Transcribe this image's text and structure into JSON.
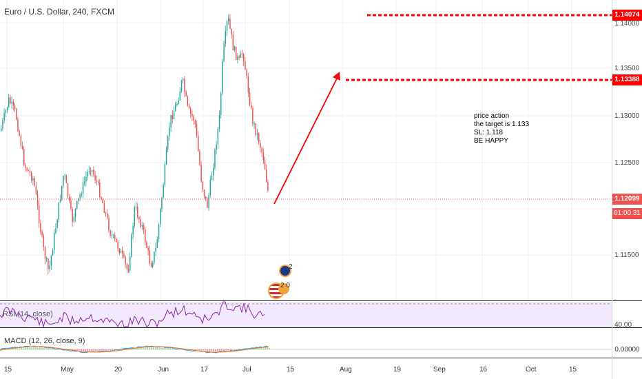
{
  "header": {
    "title": "Euro / U.S. Dollar, 240, FXCM"
  },
  "price_axis": {
    "ticks": [
      "1.14000",
      "1.13500",
      "1.13000",
      "1.12500",
      "1.11500"
    ],
    "current_price": "1.12099",
    "countdown": "01:00:31",
    "target_tag": "1.13388",
    "top_tag": "1.14074"
  },
  "annotation": {
    "lines": [
      "price action",
      "the target is 1.133",
      "SL: 1.118",
      "BE HAPPY"
    ]
  },
  "events": {
    "icon_top_count": "2",
    "icon_bottom_count": "2 0"
  },
  "rsi": {
    "label": "RSI (14, close)",
    "level": "40.00"
  },
  "macd": {
    "label": "MACD (12, 26, close, 9)",
    "value": "0.00000"
  },
  "time_axis": {
    "ticks": [
      "15",
      "May",
      "20",
      "Jun",
      "17",
      "Jul",
      "15",
      "Aug",
      "19",
      "Sep",
      "16",
      "Oct",
      "15"
    ]
  },
  "colors": {
    "up": "#26a69a",
    "down": "#ef5350",
    "drawing": "#ff0000",
    "rsi_line": "#8e24aa",
    "macd": "#2196f3",
    "signal": "#ff6d00"
  }
}
